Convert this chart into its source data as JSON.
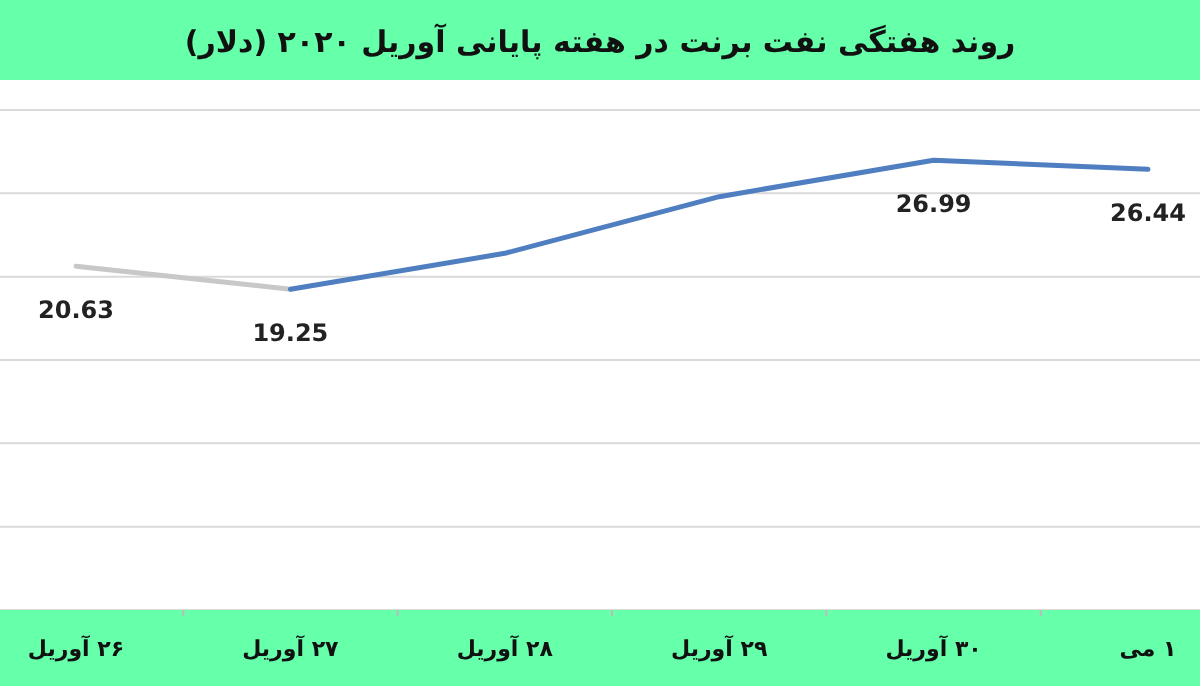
{
  "chart_data": {
    "type": "line",
    "title": "روند هفتگی نفت برنت در هفته پایانی آوریل ۲۰۲۰ (دلار)",
    "categories": [
      "۲۶ آوریل",
      "۲۷ آوریل",
      "۲۸ آوریل",
      "۲۹ آوریل",
      "۳۰ آوریل",
      "۱ می"
    ],
    "series": [
      {
        "color": "#c8c8c8",
        "values": [
          20.63,
          19.25,
          null,
          null,
          null,
          null
        ],
        "value_labels": [
          "20.63",
          null,
          null,
          null,
          null,
          null
        ]
      },
      {
        "color": "#4f7fc0",
        "values": [
          null,
          19.25,
          21.4,
          24.8,
          26.99,
          26.44
        ],
        "value_labels": [
          null,
          "19.25",
          null,
          null,
          "26.99",
          "26.44"
        ]
      }
    ],
    "ylim": [
      0,
      30
    ],
    "yticks": [
      {
        "value": 0,
        "label": null
      },
      {
        "value": 5,
        "label": null
      },
      {
        "value": 10,
        "label": null
      },
      {
        "value": 15,
        "label": null
      },
      {
        "value": 20,
        "label": null
      },
      {
        "value": 25,
        "label": null
      },
      {
        "value": 30,
        "label": null
      }
    ],
    "tick_labels": "x",
    "grid": "y",
    "marker": "none",
    "line_style": "solid"
  }
}
